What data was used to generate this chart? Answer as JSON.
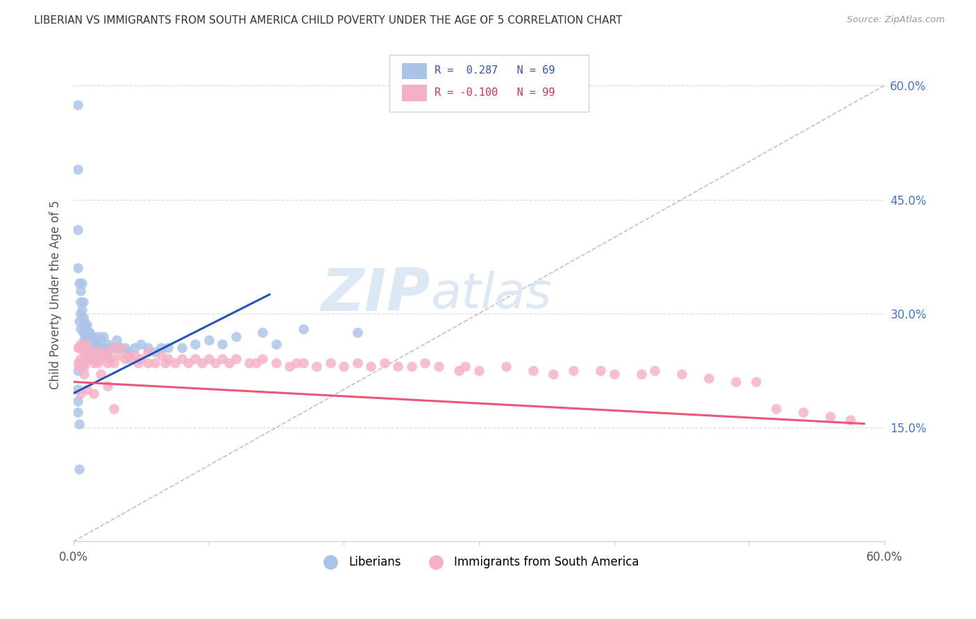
{
  "title": "LIBERIAN VS IMMIGRANTS FROM SOUTH AMERICA CHILD POVERTY UNDER THE AGE OF 5 CORRELATION CHART",
  "source": "Source: ZipAtlas.com",
  "ylabel": "Child Poverty Under the Age of 5",
  "xlim": [
    0.0,
    0.6
  ],
  "ylim": [
    0.0,
    0.65
  ],
  "xticks": [
    0.0,
    0.1,
    0.2,
    0.3,
    0.4,
    0.5,
    0.6
  ],
  "xticklabels": [
    "0.0%",
    "",
    "",
    "",
    "",
    "",
    "60.0%"
  ],
  "yticks_right": [
    0.15,
    0.3,
    0.45,
    0.6
  ],
  "ytick_right_labels": [
    "15.0%",
    "30.0%",
    "45.0%",
    "60.0%"
  ],
  "blue_color": "#aac4e8",
  "pink_color": "#f5b0c5",
  "blue_line_color": "#2255bb",
  "pink_line_color": "#ee5577",
  "dashed_line_color": "#bbbbbb",
  "watermark_color": "#dde8f5",
  "blue_line_x": [
    0.0,
    0.145
  ],
  "blue_line_y": [
    0.195,
    0.325
  ],
  "pink_line_x": [
    0.0,
    0.585
  ],
  "pink_line_y": [
    0.21,
    0.155
  ],
  "blue_x": [
    0.003,
    0.003,
    0.003,
    0.003,
    0.004,
    0.004,
    0.005,
    0.005,
    0.005,
    0.005,
    0.006,
    0.006,
    0.007,
    0.007,
    0.007,
    0.008,
    0.008,
    0.008,
    0.009,
    0.009,
    0.01,
    0.01,
    0.01,
    0.011,
    0.011,
    0.012,
    0.012,
    0.013,
    0.013,
    0.014,
    0.015,
    0.015,
    0.016,
    0.017,
    0.018,
    0.019,
    0.02,
    0.02,
    0.022,
    0.022,
    0.025,
    0.025,
    0.027,
    0.03,
    0.032,
    0.035,
    0.038,
    0.04,
    0.045,
    0.05,
    0.055,
    0.06,
    0.065,
    0.07,
    0.08,
    0.09,
    0.1,
    0.11,
    0.12,
    0.14,
    0.15,
    0.17,
    0.21,
    0.003,
    0.003,
    0.003,
    0.003,
    0.004,
    0.004
  ],
  "blue_y": [
    0.575,
    0.49,
    0.41,
    0.36,
    0.34,
    0.29,
    0.33,
    0.315,
    0.3,
    0.28,
    0.34,
    0.305,
    0.315,
    0.295,
    0.275,
    0.29,
    0.28,
    0.265,
    0.285,
    0.27,
    0.285,
    0.27,
    0.255,
    0.275,
    0.26,
    0.275,
    0.26,
    0.265,
    0.255,
    0.27,
    0.265,
    0.25,
    0.26,
    0.26,
    0.27,
    0.255,
    0.265,
    0.25,
    0.27,
    0.255,
    0.26,
    0.245,
    0.255,
    0.255,
    0.265,
    0.255,
    0.255,
    0.25,
    0.255,
    0.26,
    0.255,
    0.25,
    0.255,
    0.255,
    0.255,
    0.26,
    0.265,
    0.26,
    0.27,
    0.275,
    0.26,
    0.28,
    0.275,
    0.225,
    0.2,
    0.185,
    0.17,
    0.155,
    0.095
  ],
  "pink_x": [
    0.003,
    0.003,
    0.004,
    0.004,
    0.005,
    0.005,
    0.006,
    0.006,
    0.007,
    0.007,
    0.008,
    0.008,
    0.009,
    0.01,
    0.01,
    0.011,
    0.012,
    0.013,
    0.014,
    0.015,
    0.015,
    0.016,
    0.017,
    0.018,
    0.019,
    0.02,
    0.022,
    0.025,
    0.025,
    0.027,
    0.03,
    0.03,
    0.033,
    0.035,
    0.038,
    0.04,
    0.042,
    0.045,
    0.048,
    0.05,
    0.055,
    0.055,
    0.06,
    0.065,
    0.068,
    0.07,
    0.075,
    0.08,
    0.085,
    0.09,
    0.095,
    0.1,
    0.105,
    0.11,
    0.115,
    0.12,
    0.13,
    0.135,
    0.14,
    0.15,
    0.16,
    0.165,
    0.17,
    0.18,
    0.19,
    0.2,
    0.21,
    0.22,
    0.23,
    0.24,
    0.25,
    0.26,
    0.27,
    0.285,
    0.29,
    0.3,
    0.32,
    0.34,
    0.355,
    0.37,
    0.39,
    0.4,
    0.42,
    0.43,
    0.45,
    0.47,
    0.49,
    0.505,
    0.52,
    0.54,
    0.56,
    0.575,
    0.005,
    0.008,
    0.01,
    0.015,
    0.02,
    0.025,
    0.03
  ],
  "pink_y": [
    0.255,
    0.235,
    0.255,
    0.23,
    0.26,
    0.24,
    0.255,
    0.235,
    0.255,
    0.235,
    0.25,
    0.23,
    0.245,
    0.26,
    0.24,
    0.25,
    0.245,
    0.24,
    0.245,
    0.25,
    0.235,
    0.24,
    0.245,
    0.235,
    0.24,
    0.25,
    0.245,
    0.25,
    0.235,
    0.24,
    0.255,
    0.235,
    0.245,
    0.255,
    0.24,
    0.245,
    0.24,
    0.245,
    0.235,
    0.24,
    0.25,
    0.235,
    0.235,
    0.245,
    0.235,
    0.24,
    0.235,
    0.24,
    0.235,
    0.24,
    0.235,
    0.24,
    0.235,
    0.24,
    0.235,
    0.24,
    0.235,
    0.235,
    0.24,
    0.235,
    0.23,
    0.235,
    0.235,
    0.23,
    0.235,
    0.23,
    0.235,
    0.23,
    0.235,
    0.23,
    0.23,
    0.235,
    0.23,
    0.225,
    0.23,
    0.225,
    0.23,
    0.225,
    0.22,
    0.225,
    0.225,
    0.22,
    0.22,
    0.225,
    0.22,
    0.215,
    0.21,
    0.21,
    0.175,
    0.17,
    0.165,
    0.16,
    0.195,
    0.22,
    0.2,
    0.195,
    0.22,
    0.205,
    0.175
  ]
}
